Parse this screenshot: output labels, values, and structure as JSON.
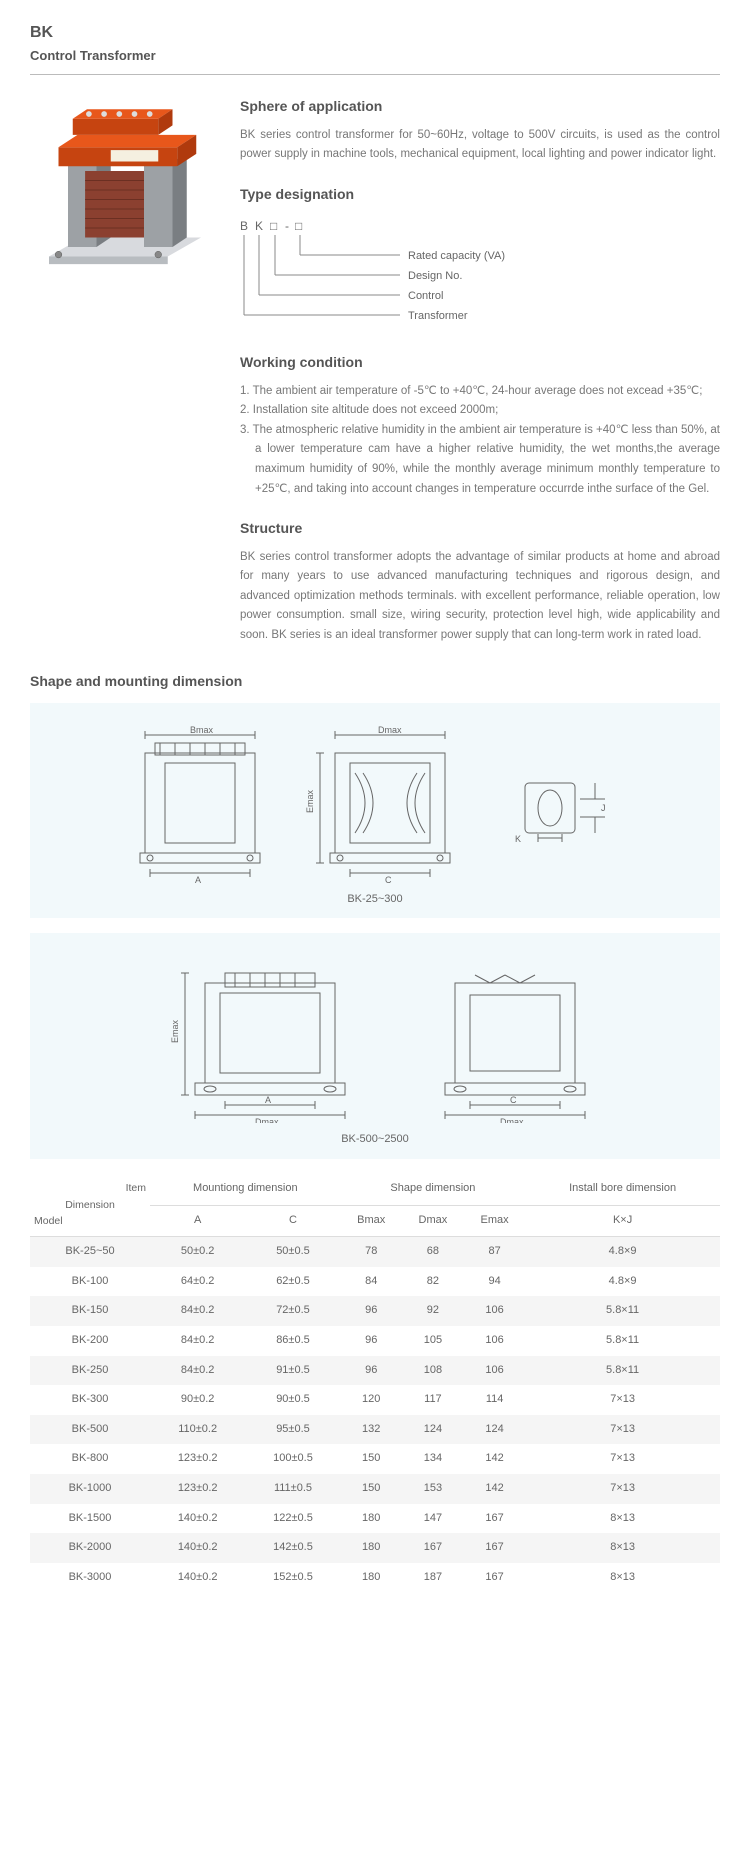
{
  "header": {
    "title": "BK",
    "subtitle": "Control Transformer"
  },
  "sphere": {
    "title": "Sphere of application",
    "text": "BK series control transformer for 50~60Hz, voltage to 500V circuits, is used as the control power supply in machine tools, mechanical equipment, local lighting and power indicator light."
  },
  "type_designation": {
    "title": "Type designation",
    "code_chars": [
      "B",
      "K",
      "□",
      "-",
      "□"
    ],
    "labels": [
      "Rated capacity (VA)",
      "Design No.",
      "Control",
      "Transformer"
    ]
  },
  "working": {
    "title": "Working condition",
    "items": [
      "1. The ambient air temperature of -5℃ to +40℃, 24-hour average does not excead +35℃;",
      "2. Installation site altitude does not exceed 2000m;",
      "3. The atmospheric relative humidity in the ambient air temperature is +40℃ less than 50%, at a lower temperature cam have a higher relative humidity, the wet months,the average maximum humidity of 90%, while the monthly average minimum monthly temperature to +25℃, and taking into account changes in temperature occurrde inthe surface of the Gel."
    ]
  },
  "structure": {
    "title": "Structure",
    "text": "BK series control transformer adopts the advantage of similar products at home and abroad for many years to use advanced manufacturing techniques and rigorous design, and advanced optimization methods terminals. with excellent performance, reliable operation, low power consumption. small size, wiring security, protection level high, wide applicability and soon. BK series is an ideal transformer power supply that can long-term work in rated load."
  },
  "shape_section": {
    "title": "Shape and mounting dimension",
    "caption1": "BK-25~300",
    "caption2": "BK-500~2500"
  },
  "table": {
    "group_headers": {
      "diag": "Item",
      "diag2": "Dimension",
      "diag3": "Model",
      "mounting": "Mountiong dimension",
      "shape": "Shape dimension",
      "install": "Install bore dimension"
    },
    "sub_headers": [
      "A",
      "C",
      "Bmax",
      "Dmax",
      "Emax",
      "K×J"
    ],
    "rows": [
      [
        "BK-25~50",
        "50±0.2",
        "50±0.5",
        "78",
        "68",
        "87",
        "4.8×9"
      ],
      [
        "BK-100",
        "64±0.2",
        "62±0.5",
        "84",
        "82",
        "94",
        "4.8×9"
      ],
      [
        "BK-150",
        "84±0.2",
        "72±0.5",
        "96",
        "92",
        "106",
        "5.8×11"
      ],
      [
        "BK-200",
        "84±0.2",
        "86±0.5",
        "96",
        "105",
        "106",
        "5.8×11"
      ],
      [
        "BK-250",
        "84±0.2",
        "91±0.5",
        "96",
        "108",
        "106",
        "5.8×11"
      ],
      [
        "BK-300",
        "90±0.2",
        "90±0.5",
        "120",
        "117",
        "114",
        "7×13"
      ],
      [
        "BK-500",
        "110±0.2",
        "95±0.5",
        "132",
        "124",
        "124",
        "7×13"
      ],
      [
        "BK-800",
        "123±0.2",
        "100±0.5",
        "150",
        "134",
        "142",
        "7×13"
      ],
      [
        "BK-1000",
        "123±0.2",
        "111±0.5",
        "150",
        "153",
        "142",
        "7×13"
      ],
      [
        "BK-1500",
        "140±0.2",
        "122±0.5",
        "180",
        "147",
        "167",
        "8×13"
      ],
      [
        "BK-2000",
        "140±0.2",
        "142±0.5",
        "180",
        "167",
        "167",
        "8×13"
      ],
      [
        "BK-3000",
        "140±0.2",
        "152±0.5",
        "180",
        "187",
        "167",
        "8×13"
      ]
    ]
  },
  "colors": {
    "transformer_orange": "#e8571b",
    "transformer_orange_dark": "#c64410",
    "transformer_grey": "#9da1a5",
    "transformer_grey_dark": "#7a7e82",
    "transformer_copper": "#8b4030",
    "diagram_bg": "#f2f9fb",
    "stroke": "#666"
  }
}
